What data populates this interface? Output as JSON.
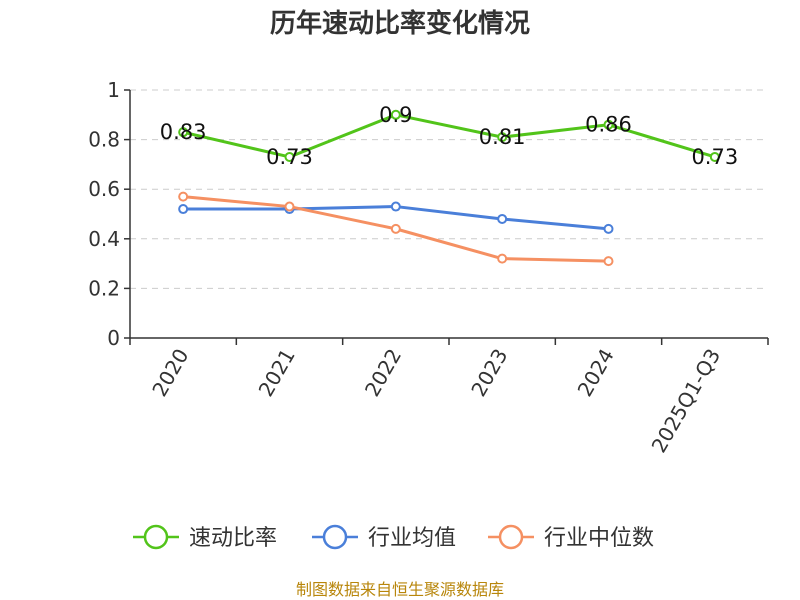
{
  "chart_data": {
    "type": "line",
    "title": "历年速动比率变化情况",
    "categories": [
      "2020",
      "2021",
      "2022",
      "2023",
      "2024",
      "2025Q1-Q3"
    ],
    "ylim": [
      0,
      1
    ],
    "yticks": [
      "0",
      "0.2",
      "0.4",
      "0.6",
      "0.8",
      "1"
    ],
    "grid": true,
    "legend_position": "bottom",
    "series": [
      {
        "name": "速动比率",
        "color": "#52c41a",
        "values": [
          0.83,
          0.73,
          0.9,
          0.81,
          0.86,
          0.73
        ],
        "labels": [
          "0.83",
          "0.73",
          "0.9",
          "0.81",
          "0.86",
          "0.73"
        ]
      },
      {
        "name": "行业均值",
        "color": "#4a7fd9",
        "values": [
          0.52,
          0.52,
          0.53,
          0.48,
          0.44,
          null
        ]
      },
      {
        "name": "行业中位数",
        "color": "#f59062",
        "values": [
          0.57,
          0.53,
          0.44,
          0.32,
          0.31,
          null
        ]
      }
    ]
  },
  "source_text": "制图数据来自恒生聚源数据库"
}
